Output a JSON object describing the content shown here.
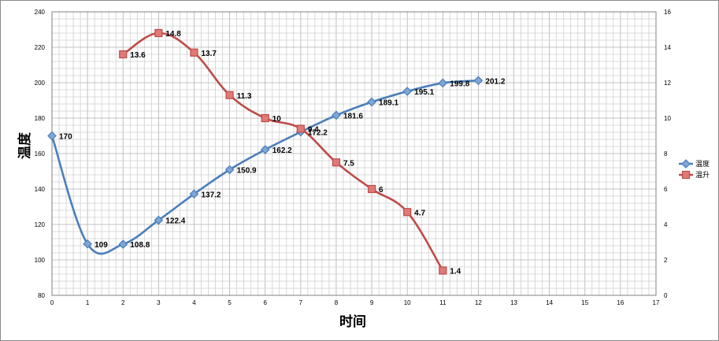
{
  "chart_data": {
    "type": "line",
    "xlabel": "时间",
    "ylabel": "温度",
    "x_ticks": [
      0,
      1,
      2,
      3,
      4,
      5,
      6,
      7,
      8,
      9,
      10,
      11,
      12,
      13,
      14,
      15,
      16,
      17
    ],
    "xlim": [
      0,
      17
    ],
    "ylim_left": [
      80,
      240
    ],
    "ylim_right": [
      0,
      16
    ],
    "left_ticks": [
      80,
      100,
      120,
      140,
      160,
      180,
      200,
      220,
      240
    ],
    "right_ticks": [
      0,
      2,
      4,
      6,
      8,
      10,
      12,
      14,
      16
    ],
    "grid": true,
    "legend_position": "right",
    "series": [
      {
        "name": "温度",
        "axis": "left",
        "color": "#4a7ebb",
        "marker": "diamond",
        "x": [
          0,
          1,
          2,
          3,
          4,
          5,
          6,
          7,
          8,
          9,
          10,
          11,
          12
        ],
        "values": [
          170,
          109,
          108.8,
          122.4,
          137.2,
          150.9,
          162.2,
          172.2,
          181.6,
          189.1,
          195.1,
          199.8,
          201.2
        ],
        "labels": [
          "170",
          "109",
          "108.8",
          "122.4",
          "137.2",
          "150.9",
          "162.2",
          "172.2",
          "181.6",
          "189.1",
          "195.1",
          "199.8",
          "201.2"
        ]
      },
      {
        "name": "温升",
        "axis": "right",
        "color": "#be4b48",
        "marker": "square",
        "x": [
          2,
          3,
          4,
          5,
          6,
          7,
          8,
          9,
          10,
          11
        ],
        "values": [
          13.6,
          14.8,
          13.7,
          11.3,
          10,
          9.4,
          7.5,
          6,
          4.7,
          1.4
        ],
        "labels": [
          "13.6",
          "14.8",
          "13.7",
          "11.3",
          "10",
          "9.4",
          "7.5",
          "6",
          "4.7",
          "1.4"
        ]
      }
    ]
  }
}
